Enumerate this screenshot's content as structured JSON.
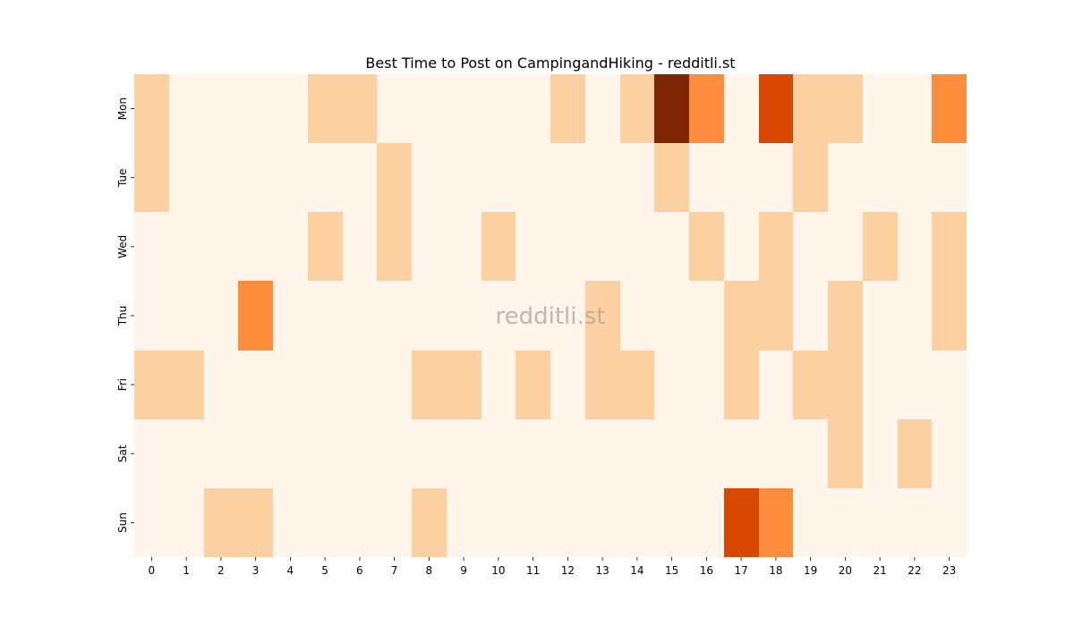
{
  "chart_data": {
    "type": "heatmap",
    "title": "Best Time to Post on CampingandHiking - redditli.st",
    "xlabel": "",
    "ylabel": "",
    "x_categories": [
      "0",
      "1",
      "2",
      "3",
      "4",
      "5",
      "6",
      "7",
      "8",
      "9",
      "10",
      "11",
      "12",
      "13",
      "14",
      "15",
      "16",
      "17",
      "18",
      "19",
      "20",
      "21",
      "22",
      "23"
    ],
    "y_categories": [
      "Mon",
      "Tue",
      "Wed",
      "Thu",
      "Fri",
      "Sat",
      "Sun"
    ],
    "values": [
      [
        1,
        0,
        0,
        0,
        0,
        1,
        1,
        0,
        0,
        0,
        0,
        0,
        1,
        0,
        1,
        5,
        3,
        0,
        4,
        1,
        1,
        0,
        0,
        3
      ],
      [
        1,
        0,
        0,
        0,
        0,
        0,
        0,
        1,
        0,
        0,
        0,
        0,
        0,
        0,
        0,
        1,
        0,
        0,
        0,
        1,
        0,
        0,
        0,
        0
      ],
      [
        0,
        0,
        0,
        0,
        0,
        1,
        0,
        1,
        0,
        0,
        1,
        0,
        0,
        0,
        0,
        0,
        1,
        0,
        1,
        0,
        0,
        1,
        0,
        1
      ],
      [
        0,
        0,
        0,
        3,
        0,
        0,
        0,
        0,
        0,
        0,
        0,
        0,
        0,
        1,
        0,
        0,
        0,
        1,
        1,
        0,
        1,
        0,
        0,
        1
      ],
      [
        1,
        1,
        0,
        0,
        0,
        0,
        0,
        0,
        1,
        1,
        0,
        1,
        0,
        1,
        1,
        0,
        0,
        1,
        0,
        1,
        1,
        0,
        0,
        0
      ],
      [
        0,
        0,
        0,
        0,
        0,
        0,
        0,
        0,
        0,
        0,
        0,
        0,
        0,
        0,
        0,
        0,
        0,
        0,
        0,
        0,
        1,
        0,
        1,
        0
      ],
      [
        0,
        0,
        1,
        1,
        0,
        0,
        0,
        0,
        1,
        0,
        0,
        0,
        0,
        0,
        0,
        0,
        0,
        4,
        3,
        0,
        0,
        0,
        0,
        0
      ]
    ],
    "value_range": [
      0,
      5
    ],
    "colormap": "Oranges",
    "level_colors": [
      "#fff5eb",
      "#fdd0a2",
      "#fdae6b",
      "#fd8d3c",
      "#d94801",
      "#7f2704"
    ],
    "legend": "none",
    "grid": false,
    "watermark": "redditli.st"
  }
}
